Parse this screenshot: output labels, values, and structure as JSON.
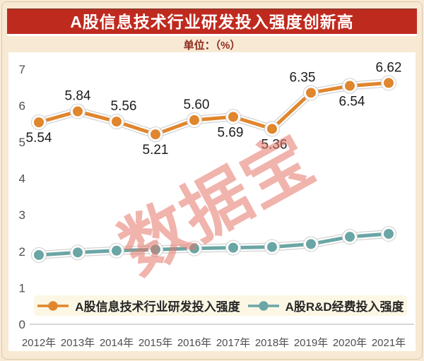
{
  "page": {
    "background": "#f8e9d4",
    "card_background": "#ffffff",
    "border_color": "#dcc7a9"
  },
  "header": {
    "title": "A股信息技术行业研发投入强度创新高",
    "banner_color": "#bf2a1f",
    "title_color": "#ffffff",
    "unit_label": "单位：（%）",
    "unit_color": "#8e2a1b"
  },
  "watermark": {
    "text": "数据宝",
    "color": "#e4776b"
  },
  "chart_data": {
    "type": "line",
    "title": "A股信息技术行业研发投入强度创新高",
    "unit": "%",
    "categories": [
      "2012年",
      "2013年",
      "2014年",
      "2015年",
      "2016年",
      "2017年",
      "2018年",
      "2019年",
      "2020年",
      "2021年"
    ],
    "series": [
      {
        "name": "A股信息技术行业研发投入强度",
        "color": "#e0862d",
        "values": [
          5.54,
          5.84,
          5.56,
          5.21,
          5.6,
          5.69,
          5.36,
          6.35,
          6.54,
          6.62
        ],
        "data_labels_visible": true
      },
      {
        "name": "A股R&D经费投入强度",
        "color": "#6aa6a5",
        "values": [
          1.9,
          1.97,
          2.02,
          2.05,
          2.08,
          2.1,
          2.12,
          2.2,
          2.4,
          2.48
        ],
        "data_labels_visible": false,
        "values_estimated_from_pixels": true
      }
    ],
    "ylim": [
      0,
      7
    ],
    "yticks": [
      0,
      1,
      2,
      3,
      4,
      5,
      6,
      7
    ],
    "grid": false,
    "legend_position": "bottom",
    "axis_color": "#c9c9c9",
    "tick_color": "#4f4f4f",
    "watermark": "数据宝"
  }
}
